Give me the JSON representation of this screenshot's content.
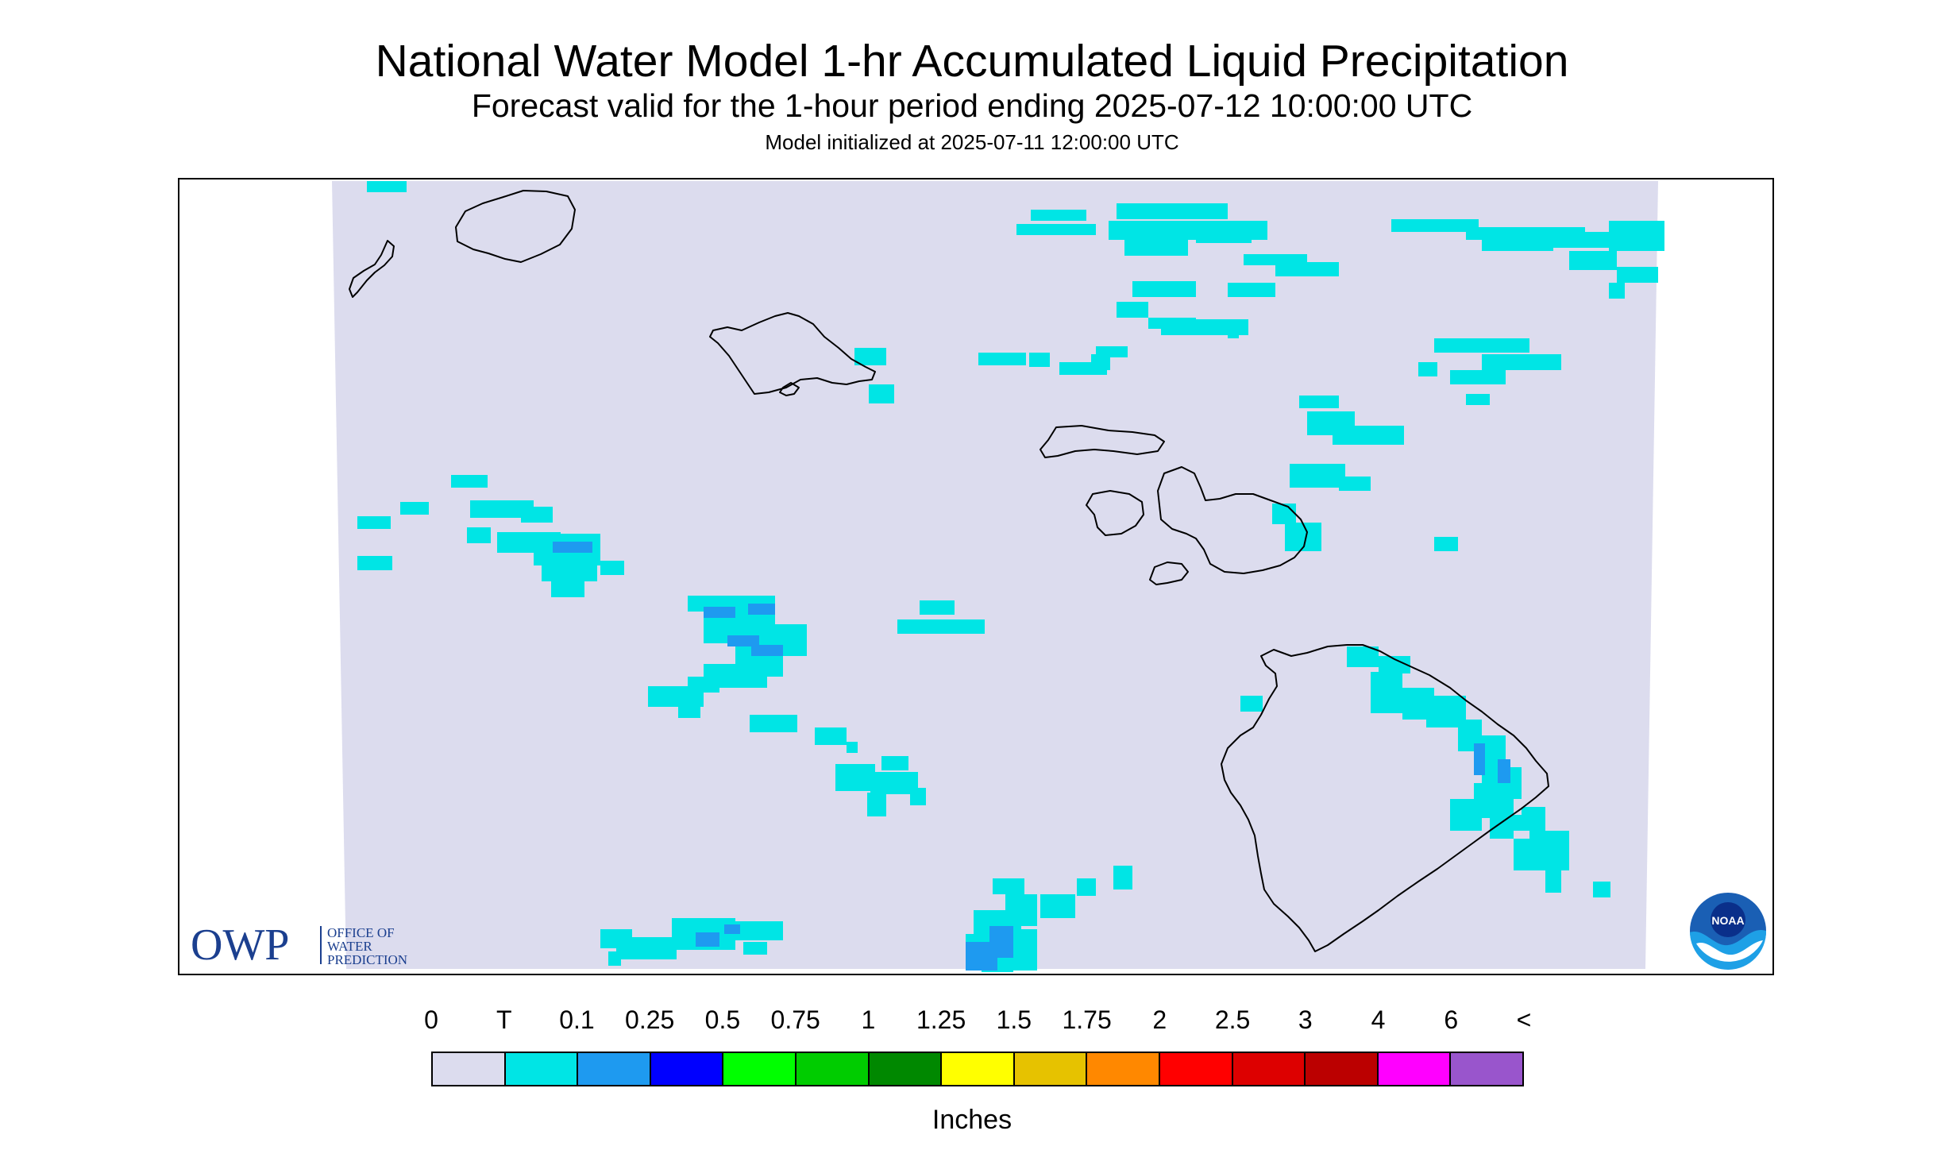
{
  "header": {
    "title": "National Water Model 1-hr Accumulated Liquid Precipitation",
    "subtitle": "Forecast valid for the 1-hour period ending 2025-07-12 10:00:00 UTC",
    "init_line": "Model initialized at 2025-07-11 12:00:00 UTC"
  },
  "map": {
    "background_color": "#ffffff",
    "domain_color": "#dcdcee",
    "coastline_color": "#000000",
    "islands": [
      "Niihau",
      "Kauai",
      "Oahu",
      "Molokai",
      "Lanai",
      "Maui",
      "Kahoolawe",
      "Hawaii"
    ]
  },
  "logos": {
    "owp": {
      "mark": "OWP",
      "line1": "OFFICE OF",
      "line2": "WATER",
      "line3": "PREDICTION",
      "color": "#1b3f8f"
    },
    "noaa": {
      "text": "NOAA",
      "icon": "noaa-emblem-icon"
    }
  },
  "legend": {
    "labels": [
      "0",
      "T",
      "0.1",
      "0.25",
      "0.5",
      "0.75",
      "1",
      "1.25",
      "1.5",
      "1.75",
      "2",
      "2.5",
      "3",
      "4",
      "6",
      "<"
    ],
    "colors": [
      "#dcdcee",
      "#00e5e5",
      "#1e9af0",
      "#0000ff",
      "#00ff00",
      "#00cc00",
      "#008800",
      "#ffff00",
      "#e6c200",
      "#ff8800",
      "#ff0000",
      "#dd0000",
      "#bb0000",
      "#ff00ff",
      "#9955cc"
    ],
    "units": "Inches"
  }
}
